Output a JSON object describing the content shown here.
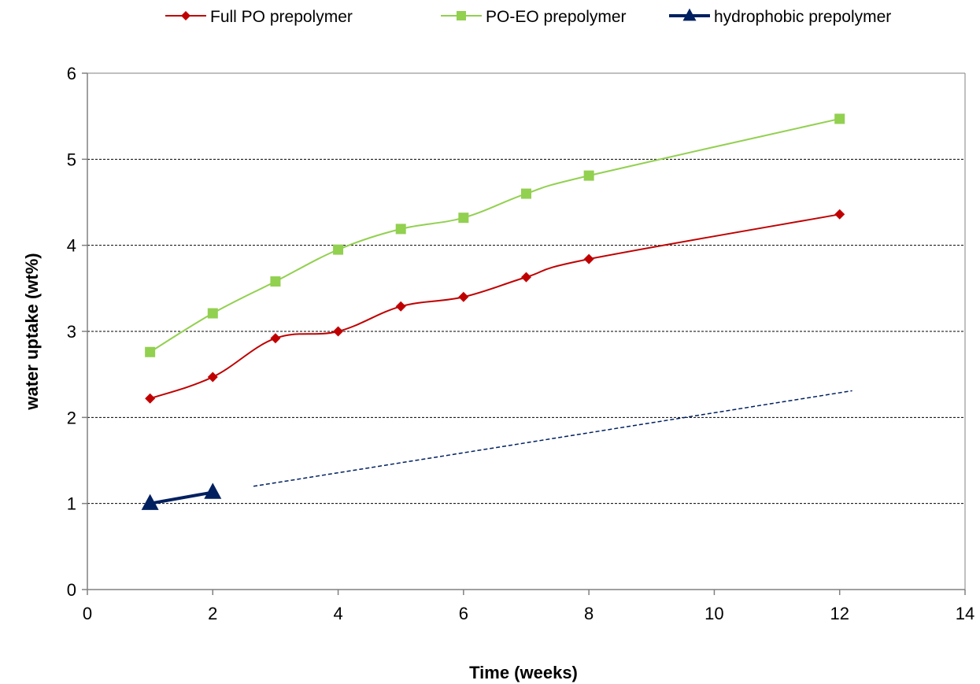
{
  "chart_data": {
    "type": "line",
    "title": "",
    "xlabel": "Time (weeks)",
    "ylabel": "water uptake (wt%)",
    "xlim": [
      0,
      14
    ],
    "ylim": [
      0,
      6
    ],
    "xticks": [
      0,
      2,
      4,
      6,
      8,
      10,
      12,
      14
    ],
    "yticks": [
      0,
      1,
      2,
      3,
      4,
      5,
      6
    ],
    "grid": "horizontal dashed",
    "legend_position": "top",
    "series": [
      {
        "name": "Full PO prepolymer",
        "color": "#c00000",
        "marker": "diamond",
        "x": [
          1,
          2,
          3,
          4,
          5,
          6,
          7,
          8,
          12
        ],
        "y": [
          2.22,
          2.47,
          2.92,
          3.0,
          3.29,
          3.4,
          3.63,
          3.84,
          4.36
        ]
      },
      {
        "name": "PO-EO prepolymer",
        "color": "#92d050",
        "marker": "square",
        "x": [
          1,
          2,
          3,
          4,
          5,
          6,
          7,
          8,
          12
        ],
        "y": [
          2.76,
          3.21,
          3.58,
          3.95,
          4.19,
          4.32,
          4.6,
          4.81,
          5.47
        ]
      },
      {
        "name": "hydrophobic prepolymer",
        "color": "#002060",
        "marker": "triangle",
        "x": [
          1,
          2
        ],
        "y": [
          1.0,
          1.13
        ]
      }
    ],
    "trendline": {
      "color": "#002060",
      "style": "dashed",
      "x": [
        2.65,
        12.2
      ],
      "y": [
        1.2,
        2.31
      ]
    }
  }
}
